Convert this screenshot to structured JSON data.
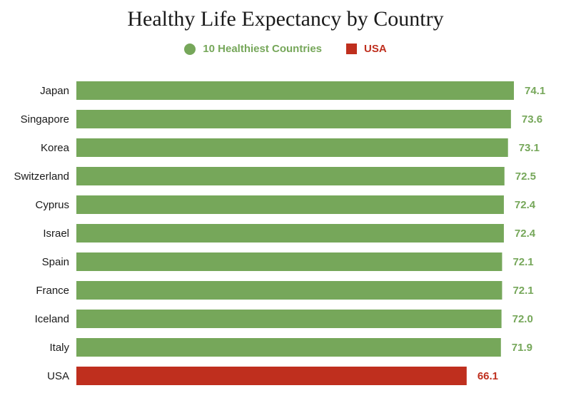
{
  "chart_data": {
    "type": "bar",
    "orientation": "horizontal",
    "title": "Healthy Life Expectancy by Country",
    "legend": [
      {
        "label": "10 Healthiest Countries",
        "color": "#76a75a",
        "marker": "circle"
      },
      {
        "label": "USA",
        "color": "#bf2f1e",
        "marker": "square"
      }
    ],
    "legend_position": "top-center",
    "categories": [
      "Japan",
      "Singapore",
      "Korea",
      "Switzerland",
      "Cyprus",
      "Israel",
      "Spain",
      "France",
      "Iceland",
      "Italy",
      "USA"
    ],
    "values": [
      74.1,
      73.6,
      73.1,
      72.5,
      72.4,
      72.4,
      72.1,
      72.1,
      72.0,
      71.9,
      66.1
    ],
    "value_labels": [
      "74.1",
      "73.6",
      "73.1",
      "72.5",
      "72.4",
      "72.4",
      "72.1",
      "72.1",
      "72.0",
      "71.9",
      "66.1"
    ],
    "groups": [
      "top10",
      "top10",
      "top10",
      "top10",
      "top10",
      "top10",
      "top10",
      "top10",
      "top10",
      "top10",
      "usa"
    ],
    "colors": {
      "top10": "#76a75a",
      "usa": "#bf2f1e"
    },
    "xlim": [
      0,
      74.1
    ],
    "grid": false
  }
}
